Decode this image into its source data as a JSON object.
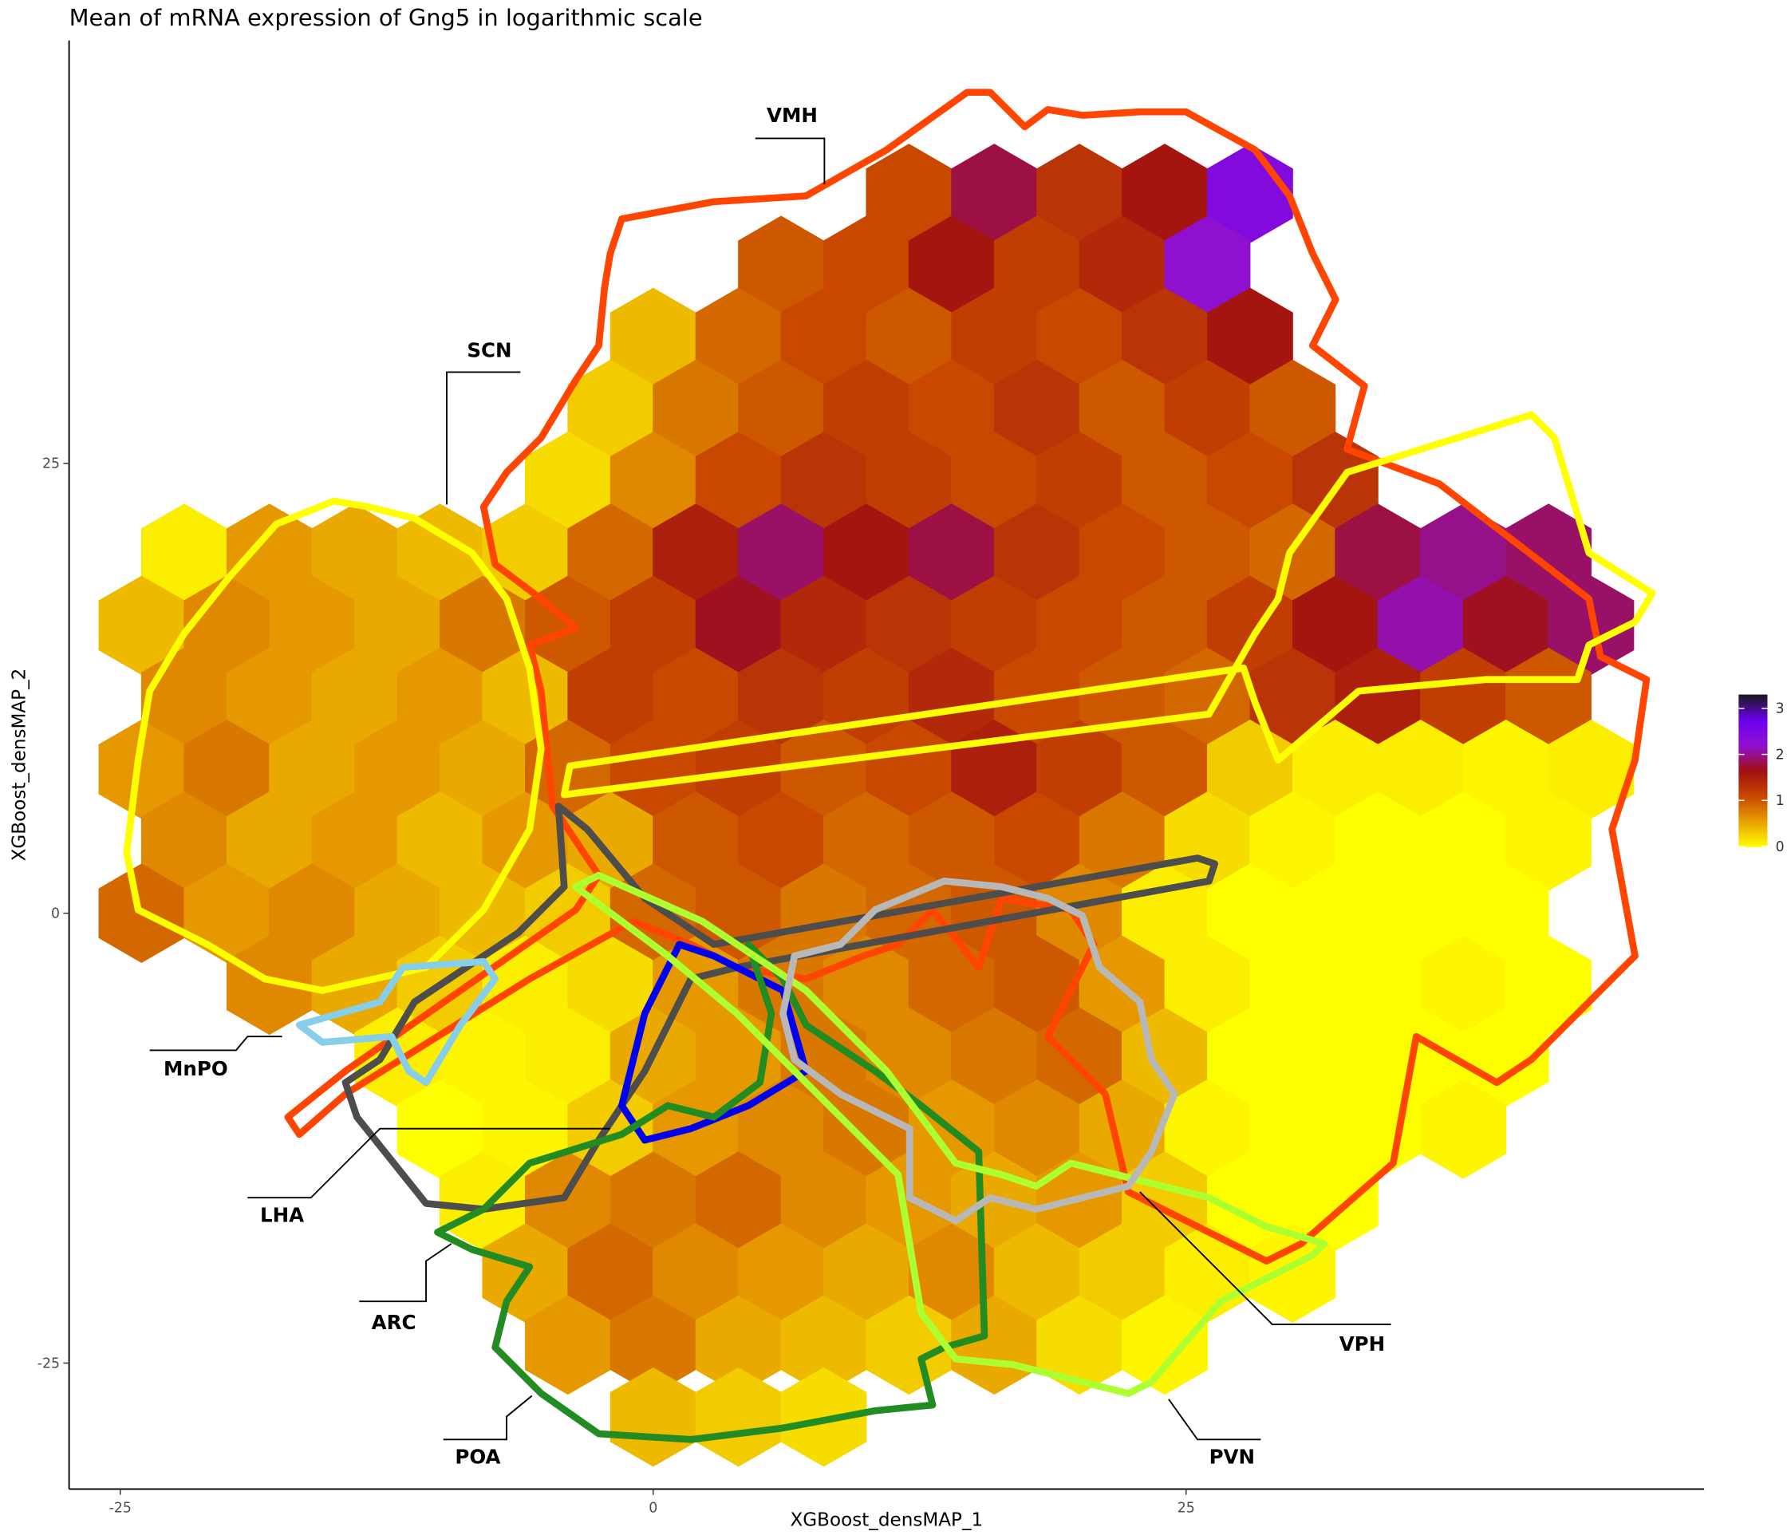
{
  "chart_data": {
    "type": "hexbin",
    "title": "Mean of mRNA expression of Gng5 in logarithmic scale",
    "x_label": "XGBoost_densMAP_1",
    "y_label": "XGBoost_densMAP_2",
    "xlim": [
      -27.4,
      49.3
    ],
    "ylim": [
      -32,
      48.5
    ],
    "xticks": [
      -25,
      0,
      25
    ],
    "yticks": [
      -25,
      0,
      25
    ],
    "clim": [
      0,
      3.3
    ],
    "cticks": [
      0,
      1,
      2,
      3
    ],
    "colors": [
      "#ffff00",
      "#e8a000",
      "#c84800",
      "#a01010",
      "#9010d0",
      "#6a00f0",
      "#1a1a1a"
    ],
    "region_labels": [
      "VMH",
      "SCN",
      "MnPO",
      "LHA",
      "ARC",
      "POA",
      "PVN",
      "VPH"
    ],
    "x": [
      12,
      16,
      20,
      24,
      28,
      6,
      10,
      14,
      18,
      22,
      26,
      0,
      4,
      8,
      12,
      16,
      20,
      24,
      28,
      -2,
      2,
      6,
      10,
      14,
      18,
      22,
      26,
      30,
      -4,
      0,
      4,
      8,
      12,
      16,
      20,
      24,
      28,
      32,
      -22,
      -18,
      -14,
      -10,
      -6,
      -2,
      2,
      6,
      10,
      14,
      18,
      22,
      26,
      30,
      34,
      38,
      42,
      -24,
      -20,
      -16,
      -12,
      -8,
      -4,
      0,
      4,
      8,
      12,
      16,
      20,
      24,
      28,
      32,
      36,
      40,
      44,
      -22,
      -18,
      -14,
      -10,
      -6,
      -2,
      2,
      6,
      10,
      14,
      18,
      22,
      26,
      30,
      34,
      38,
      42,
      -24,
      -20,
      -16,
      -12,
      -8,
      -4,
      0,
      4,
      8,
      12,
      16,
      20,
      24,
      28,
      32,
      36,
      40,
      44,
      -22,
      -18,
      -14,
      -10,
      -6,
      -2,
      2,
      6,
      10,
      14,
      18,
      22,
      26,
      30,
      34,
      38,
      42,
      -24,
      -20,
      -16,
      -12,
      -8,
      -4,
      0,
      4,
      8,
      12,
      16,
      20,
      24,
      28,
      32,
      36,
      40,
      -18,
      -14,
      -10,
      -6,
      -2,
      2,
      6,
      10,
      14,
      18,
      22,
      26,
      30,
      34,
      38,
      42,
      -12,
      -8,
      -4,
      0,
      4,
      8,
      12,
      16,
      20,
      24,
      28,
      32,
      36,
      40,
      -10,
      -6,
      -2,
      2,
      6,
      10,
      14,
      18,
      22,
      26,
      30,
      34,
      38,
      -8,
      -4,
      0,
      4,
      8,
      12,
      16,
      20,
      24,
      28,
      32,
      -6,
      -2,
      2,
      6,
      10,
      14,
      18,
      22,
      26,
      30,
      -4,
      0,
      4,
      8,
      12,
      16,
      20,
      24,
      0,
      4,
      8
    ],
    "y": [
      40,
      40,
      40,
      40,
      40,
      36,
      36,
      36,
      36,
      36,
      36,
      32,
      32,
      32,
      32,
      32,
      32,
      32,
      32,
      28,
      28,
      28,
      28,
      28,
      28,
      28,
      28,
      28,
      24,
      24,
      24,
      24,
      24,
      24,
      24,
      24,
      24,
      24,
      20,
      20,
      20,
      20,
      20,
      20,
      20,
      20,
      20,
      20,
      20,
      20,
      20,
      20,
      20,
      20,
      20,
      16,
      16,
      16,
      16,
      16,
      16,
      16,
      16,
      16,
      16,
      16,
      16,
      16,
      16,
      16,
      16,
      16,
      16,
      12,
      12,
      12,
      12,
      12,
      12,
      12,
      12,
      12,
      12,
      12,
      12,
      12,
      12,
      12,
      12,
      12,
      8,
      8,
      8,
      8,
      8,
      8,
      8,
      8,
      8,
      8,
      8,
      8,
      8,
      8,
      8,
      8,
      8,
      8,
      4,
      4,
      4,
      4,
      4,
      4,
      4,
      4,
      4,
      4,
      4,
      4,
      4,
      4,
      4,
      4,
      4,
      0,
      0,
      0,
      0,
      0,
      0,
      0,
      0,
      0,
      0,
      0,
      0,
      0,
      0,
      0,
      0,
      0,
      -4,
      -4,
      -4,
      -4,
      -4,
      -4,
      -4,
      -4,
      -4,
      -4,
      -4,
      -4,
      -4,
      -4,
      -4,
      -4,
      -8,
      -8,
      -8,
      -8,
      -8,
      -8,
      -8,
      -8,
      -8,
      -8,
      -8,
      -8,
      -8,
      -8,
      -12,
      -12,
      -12,
      -12,
      -12,
      -12,
      -12,
      -12,
      -12,
      -12,
      -12,
      -12,
      -12,
      -16,
      -16,
      -16,
      -16,
      -16,
      -16,
      -16,
      -16,
      -16,
      -16,
      -16,
      -20,
      -20,
      -20,
      -20,
      -20,
      -20,
      -20,
      -20,
      -20,
      -20,
      -24,
      -24,
      -24,
      -24,
      -24,
      -24,
      -24,
      -24,
      -28,
      -28,
      -28
    ],
    "values": [
      1.1,
      1.8,
      1.3,
      1.6,
      2.4,
      1.0,
      1.1,
      1.6,
      1.2,
      1.4,
      2.2,
      0.4,
      0.9,
      1.1,
      1.0,
      1.2,
      1.1,
      1.3,
      1.6,
      0.3,
      0.8,
      1.0,
      1.2,
      1.1,
      1.3,
      1.0,
      1.2,
      1.0,
      0.2,
      0.7,
      1.1,
      1.3,
      1.2,
      1.1,
      1.2,
      1.0,
      1.1,
      1.3,
      0.1,
      0.6,
      0.5,
      0.4,
      0.3,
      0.9,
      1.5,
      1.9,
      1.6,
      1.8,
      1.3,
      1.1,
      1.0,
      0.9,
      1.8,
      2.0,
      1.9,
      0.4,
      0.7,
      0.6,
      0.5,
      0.8,
      1.0,
      1.2,
      1.7,
      1.4,
      1.3,
      1.2,
      1.1,
      1.0,
      1.2,
      1.6,
      2.1,
      1.7,
      1.9,
      0.7,
      0.6,
      0.5,
      0.6,
      0.4,
      1.2,
      1.1,
      1.3,
      1.2,
      1.4,
      1.1,
      1.0,
      0.9,
      1.3,
      1.5,
      1.2,
      1.0,
      0.6,
      0.8,
      0.5,
      0.6,
      0.5,
      0.9,
      1.1,
      1.2,
      1.0,
      1.1,
      1.5,
      1.2,
      1.0,
      0.3,
      0.1,
      0.1,
      0.05,
      0.1,
      0.7,
      0.5,
      0.6,
      0.4,
      0.6,
      0.5,
      1.0,
      1.1,
      0.9,
      1.0,
      1.1,
      0.8,
      0.2,
      0.05,
      0,
      0,
      0.05,
      0.9,
      0.6,
      0.7,
      0.5,
      0.4,
      0.3,
      0.9,
      1.0,
      0.8,
      0.9,
      1.0,
      0.7,
      0.1,
      0,
      0,
      0,
      0,
      0.7,
      0.5,
      0.3,
      0.1,
      0.2,
      0.6,
      0.8,
      0.7,
      0.9,
      1.0,
      0.6,
      0.1,
      0,
      0,
      0.05,
      0,
      0.1,
      0.05,
      0.1,
      0.5,
      0.6,
      0.8,
      0.7,
      0.8,
      0.9,
      0.4,
      0,
      0,
      0,
      0,
      0,
      0.05,
      0.3,
      0.6,
      0.7,
      0.8,
      0.6,
      0.7,
      0.5,
      0.05,
      0,
      0,
      0.05,
      0.1,
      0.7,
      0.8,
      0.9,
      0.7,
      0.6,
      0.5,
      0.6,
      0.3,
      0,
      0,
      0.5,
      0.9,
      0.7,
      0.6,
      0.5,
      0.7,
      0.4,
      0.3,
      0.1,
      0.05,
      0.6,
      0.8,
      0.5,
      0.4,
      0.3,
      0.5,
      0.2,
      0.05,
      0.4,
      0.3,
      0.2
    ]
  }
}
